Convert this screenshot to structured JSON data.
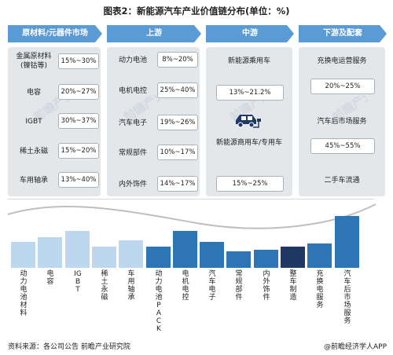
{
  "title": "图表2：新能源汽车产业价值链分布(单位：%)",
  "headers": [
    "原材料/元器件市场",
    "上游",
    "中游",
    "下游及配套"
  ],
  "raw_materials": [
    {
      "label": "金属原材料\n(镍钴等)",
      "value": "15%~30%"
    },
    {
      "label": "电容",
      "value": "20%~27%"
    },
    {
      "label": "IGBT",
      "value": "30%~37%"
    },
    {
      "label": "稀土永磁",
      "value": "15%~20%"
    },
    {
      "label": "车用轴承",
      "value": "13%~40%"
    }
  ],
  "upstream": [
    {
      "label": "动力电池",
      "value": "8%~20%"
    },
    {
      "label": "电机电控",
      "value": "25%~40%"
    },
    {
      "label": "汽车电子",
      "value": "19%~26%"
    },
    {
      "label": "常规部件",
      "value": "10%~17%"
    },
    {
      "label": "内外饰件",
      "value": "14%~17%"
    }
  ],
  "midstream": {
    "passenger_label": "新能源乘用车",
    "passenger_value": "13%~21.2%",
    "commercial_label": "新能源商用车/专用车",
    "commercial_value": "15%~25%"
  },
  "downstream": [
    {
      "label": "充换电运营服务",
      "value": "20%~25%"
    },
    {
      "label": "汽车后市场服务",
      "value": "45%~55%"
    },
    {
      "label": "二手车流通",
      "value": ""
    }
  ],
  "watermark": "前瞻产业研究院",
  "footer": {
    "source": "资料来源：各公司公告 前瞻产业研究院",
    "brand": "@前瞻经济学人APP"
  },
  "colors": {
    "header": "#5b9bd5",
    "box": "#e3e7ea",
    "bar_light": "#bdd7ee",
    "bar_mid": "#2e75b6",
    "bar_dark": "#1f3864"
  },
  "chart_data": {
    "type": "bar",
    "categories": [
      "动力电池材料",
      "电容",
      "IGBT",
      "稀土永磁",
      "车用轴承",
      "动力电池PACK",
      "电机电控",
      "汽车电子",
      "常规部件",
      "内外饰件",
      "整车制造",
      "充换电服务",
      "汽车后市场服务"
    ],
    "values": [
      8,
      9.5,
      11.5,
      6.5,
      8.5,
      6.5,
      11.5,
      8,
      5,
      5.5,
      6.5,
      7.5,
      16
    ],
    "bar_colors": [
      "#bdd7ee",
      "#bdd7ee",
      "#bdd7ee",
      "#bdd7ee",
      "#bdd7ee",
      "#2e75b6",
      "#2e75b6",
      "#2e75b6",
      "#2e75b6",
      "#2e75b6",
      "#1f3864",
      "#2e75b6",
      "#2e75b6"
    ],
    "ylim": [
      0,
      17
    ],
    "grid": false
  }
}
